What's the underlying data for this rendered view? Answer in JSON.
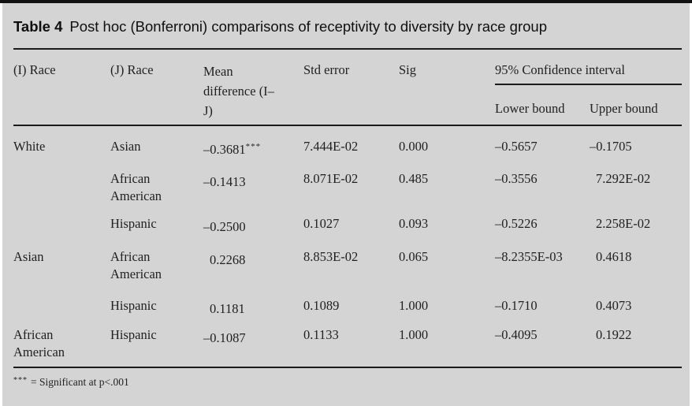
{
  "title": {
    "label": "Table 4",
    "text": "Post hoc (Bonferroni) comparisons of receptivity to diversity by race group"
  },
  "columns": {
    "i_race": "(I) Race",
    "j_race": "(J) Race",
    "mean_difference": "Mean difference (I–J)",
    "std_error": "Std error",
    "sig": "Sig",
    "confidence_interval": "95% Confidence interval",
    "lower_bound": "Lower bound",
    "upper_bound": "Upper bound"
  },
  "rows": [
    {
      "i_race": "White",
      "j_race": "Asian",
      "mean_difference": "–0.3681",
      "stars": "***",
      "std_error": "7.444E-02",
      "sig": "0.000",
      "lower_bound": "–0.5657",
      "upper_bound": "–0.1705"
    },
    {
      "i_race": "",
      "j_race": "African American",
      "mean_difference": "–0.1413",
      "stars": "",
      "std_error": "8.071E-02",
      "sig": "0.485",
      "lower_bound": "–0.3556",
      "upper_bound": "7.292E-02"
    },
    {
      "i_race": "",
      "j_race": "Hispanic",
      "mean_difference": "–0.2500",
      "stars": "",
      "std_error": "0.1027",
      "sig": "0.093",
      "lower_bound": "–0.5226",
      "upper_bound": "2.258E-02"
    },
    {
      "i_race": "Asian",
      "j_race": "African American",
      "mean_difference": "0.2268",
      "stars": "",
      "std_error": "8.853E-02",
      "sig": "0.065",
      "lower_bound": "–8.2355E-03",
      "upper_bound": "0.4618"
    },
    {
      "i_race": "",
      "j_race": "Hispanic",
      "mean_difference": "0.1181",
      "stars": "",
      "std_error": "0.1089",
      "sig": "1.000",
      "lower_bound": "–0.1710",
      "upper_bound": "0.4073"
    },
    {
      "i_race": "African American",
      "j_race": "Hispanic",
      "mean_difference": "–0.1087",
      "stars": "",
      "std_error": "0.1133",
      "sig": "1.000",
      "lower_bound": "–0.4095",
      "upper_bound": "0.1922"
    }
  ],
  "footnote": {
    "stars": "***",
    "text": "= Significant at p<.001"
  },
  "colors": {
    "page": "#ffffff",
    "table_background": "#d4d4d5",
    "text": "#1f1f1f",
    "rule": "#1b1b1b",
    "top_bar": "#121212"
  }
}
